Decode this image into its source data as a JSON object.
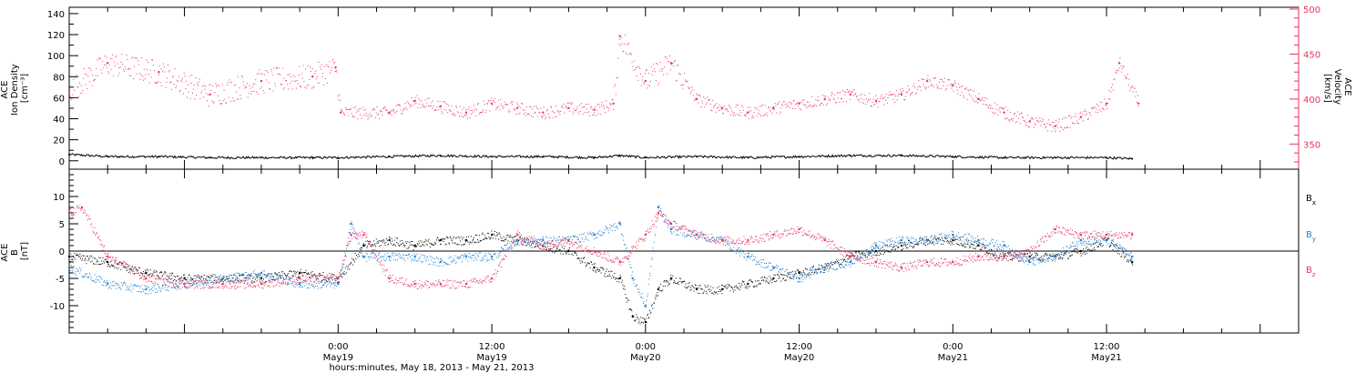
{
  "colors": {
    "density": "#000000",
    "velocity": "#e8325f",
    "bx": "#000000",
    "by": "#1e7fd8",
    "bz": "#e8325f"
  },
  "chart_data": [
    {
      "type": "scatter",
      "panel": "top",
      "ylabel_lines": [
        "ACE",
        "Ion Density",
        "[cm⁻³]"
      ],
      "ylim": [
        -8,
        146
      ],
      "yticks": [
        0,
        20,
        40,
        60,
        80,
        100,
        120,
        140
      ],
      "ylabel_right_lines": [
        "ACE",
        "Velocity",
        "[km/s]"
      ],
      "ylim_right": [
        322,
        502
      ],
      "yticks_right": [
        350,
        400,
        450,
        500
      ],
      "xlim_hours": [
        -21,
        75
      ],
      "series": [
        {
          "key": "density",
          "color": "#000000",
          "x_hours": [
            -21,
            -18,
            -14,
            -10,
            -6,
            -2,
            0,
            4,
            8,
            12,
            16,
            20,
            22,
            24,
            28,
            32,
            36,
            40,
            44,
            48,
            52,
            56,
            60,
            62
          ],
          "y": [
            6,
            4,
            4,
            3,
            3,
            3,
            3,
            4,
            5,
            4,
            4,
            3,
            5,
            3,
            4,
            3,
            4,
            5,
            5,
            4,
            3,
            3,
            3,
            2
          ]
        },
        {
          "key": "velocity",
          "color": "#e8325f",
          "x_hours": [
            -21,
            -18,
            -14,
            -10,
            -6,
            -2,
            -0.2,
            0.2,
            4,
            6,
            8,
            10,
            12,
            14,
            16,
            18,
            20,
            21.5,
            22,
            24,
            26,
            28,
            30,
            32,
            34,
            36,
            38,
            40,
            42,
            44,
            46,
            48,
            50,
            52,
            54,
            56,
            58,
            60,
            61,
            62.5
          ],
          "y": [
            410,
            440,
            430,
            405,
            420,
            425,
            435,
            385,
            385,
            398,
            392,
            385,
            395,
            390,
            385,
            390,
            388,
            395,
            470,
            420,
            440,
            400,
            390,
            385,
            390,
            395,
            400,
            405,
            398,
            405,
            420,
            415,
            400,
            385,
            375,
            370,
            380,
            395,
            440,
            395
          ]
        }
      ]
    },
    {
      "type": "scatter",
      "panel": "bottom",
      "ylabel_lines": [
        "ACE",
        "B",
        "[nT]"
      ],
      "ylim": [
        -15,
        15
      ],
      "yticks": [
        -10,
        -5,
        0,
        5,
        10
      ],
      "xlim_hours": [
        -21,
        75
      ],
      "xticks": [
        {
          "h": 0,
          "label1": "0:00",
          "label2": "May19"
        },
        {
          "h": 12,
          "label1": "12:00",
          "label2": "May19"
        },
        {
          "h": 24,
          "label1": "0:00",
          "label2": "May20"
        },
        {
          "h": 36,
          "label1": "12:00",
          "label2": "May20"
        },
        {
          "h": 48,
          "label1": "0:00",
          "label2": "May21"
        },
        {
          "h": 60,
          "label1": "12:00",
          "label2": "May21"
        }
      ],
      "xlabel": "hours:minutes, May 18, 2013 - May 21, 2013",
      "series": [
        {
          "key": "bx",
          "name": "B",
          "subscript": "x",
          "color": "#000000",
          "x_hours": [
            -21,
            -18,
            -15,
            -12,
            -9,
            -6,
            -3,
            0,
            2,
            4,
            6,
            8,
            10,
            12,
            14,
            16,
            18,
            20,
            22,
            23,
            24,
            25,
            26,
            28,
            30,
            32,
            34,
            36,
            38,
            40,
            42,
            44,
            46,
            48,
            50,
            52,
            54,
            56,
            58,
            60,
            62
          ],
          "y": [
            -1,
            -2,
            -4,
            -5,
            -5,
            -5,
            -4,
            -5,
            1,
            2,
            1,
            2,
            2,
            3,
            2,
            1,
            0,
            -3,
            -5,
            -12,
            -13,
            -7,
            -5,
            -7,
            -7,
            -6,
            -5,
            -4,
            -3,
            -1,
            0,
            1,
            2,
            2,
            1,
            -1,
            -1,
            -1,
            0,
            2,
            -2
          ]
        },
        {
          "key": "by",
          "name": "B",
          "subscript": "y",
          "color": "#1e7fd8",
          "x_hours": [
            -21,
            -18,
            -15,
            -12,
            -9,
            -6,
            -3,
            0,
            1,
            2,
            4,
            6,
            8,
            10,
            12,
            14,
            16,
            18,
            20,
            22,
            23,
            24,
            25,
            26,
            28,
            30,
            32,
            34,
            36,
            38,
            40,
            42,
            44,
            46,
            48,
            50,
            52,
            54,
            56,
            58,
            60,
            62
          ],
          "y": [
            -3,
            -6,
            -7,
            -6,
            -5,
            -4,
            -6,
            -6,
            5,
            -1,
            -1,
            -1,
            -2,
            -1,
            -1,
            2,
            2,
            2,
            3,
            5,
            -5,
            -10,
            8,
            4,
            3,
            2,
            -1,
            -3,
            -5,
            -3,
            -2,
            1,
            2,
            2,
            3,
            2,
            1,
            -2,
            -1,
            2,
            2,
            -1
          ]
        },
        {
          "key": "bz",
          "name": "B",
          "subscript": "z",
          "color": "#e8325f",
          "x_hours": [
            -21,
            -20,
            -18,
            -15,
            -12,
            -9,
            -6,
            -3,
            0,
            1,
            2,
            4,
            6,
            8,
            10,
            12,
            14,
            16,
            18,
            20,
            22,
            24,
            25,
            26,
            28,
            30,
            32,
            34,
            36,
            38,
            40,
            42,
            44,
            46,
            48,
            50,
            52,
            54,
            56,
            58,
            60,
            62
          ],
          "y": [
            7,
            8,
            -1,
            -5,
            -6,
            -6,
            -6,
            -5,
            -5,
            3,
            3,
            -5,
            -6,
            -6,
            -6,
            -5,
            3,
            1,
            2,
            0,
            -2,
            3,
            7,
            5,
            3,
            2,
            2,
            3,
            4,
            2,
            -1,
            -2,
            -3,
            -2,
            -2,
            -1,
            -1,
            0,
            4,
            3,
            3,
            3
          ]
        }
      ]
    }
  ]
}
